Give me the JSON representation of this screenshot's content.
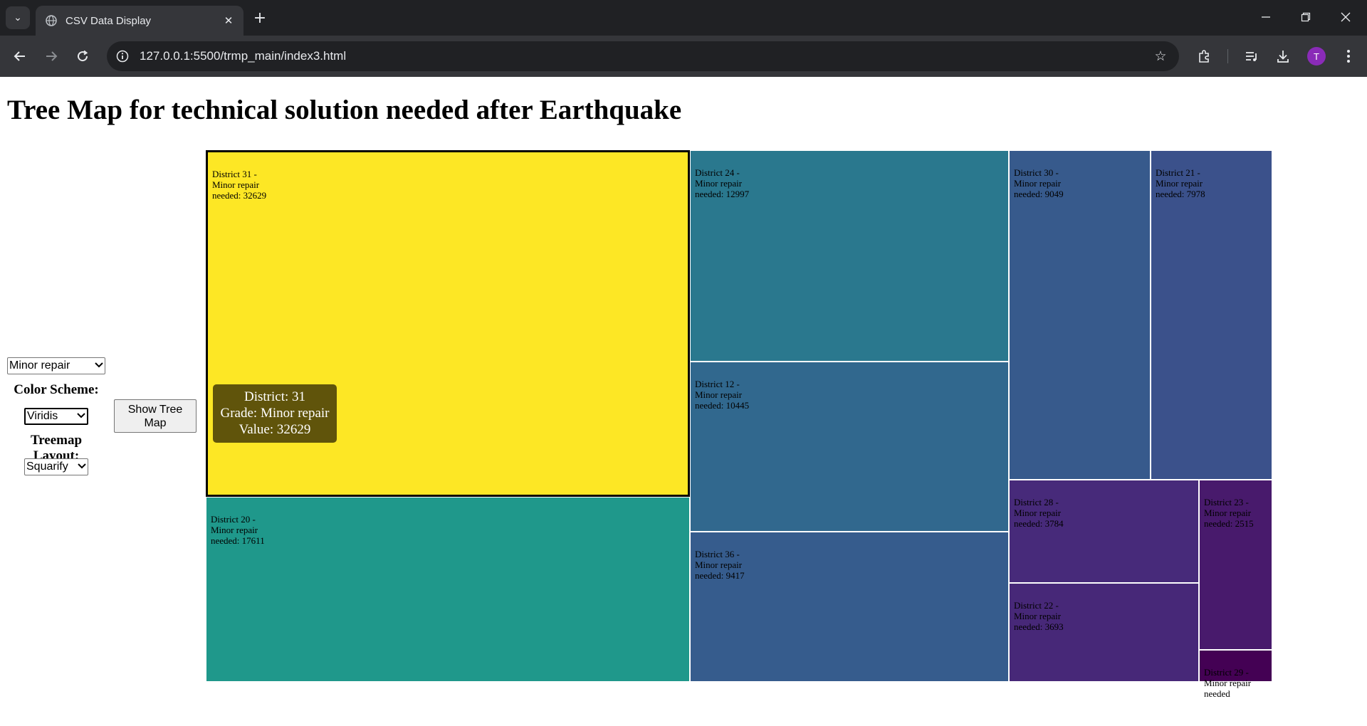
{
  "browser": {
    "tab_title": "CSV Data Display",
    "url": "127.0.0.1:5500/trmp_main/index3.html",
    "profile_initial": "T"
  },
  "page": {
    "title": "Tree Map for technical solution needed after Earthquake"
  },
  "controls": {
    "grade_value": "Minor repair",
    "color_scheme_label": "Color Scheme:",
    "color_scheme_value": "Viridis",
    "layout_label": "Treemap Layout:",
    "layout_value": "Squarify",
    "show_button_label": "Show Tree Map"
  },
  "chart_data": {
    "type": "treemap",
    "title": "",
    "grade": "Minor repair",
    "color_scheme": "Viridis",
    "layout": "squarify",
    "items": [
      {
        "district": "31",
        "value": 32629,
        "label": "District 31 - Minor repair needed: 32629",
        "color": "#fde725"
      },
      {
        "district": "20",
        "value": 17611,
        "label": "District 20 - Minor repair needed: 17611",
        "color": "#1f988b"
      },
      {
        "district": "24",
        "value": 12997,
        "label": "District 24 - Minor repair needed: 12997",
        "color": "#2a788e"
      },
      {
        "district": "12",
        "value": 10445,
        "label": "District 12 - Minor repair needed: 10445",
        "color": "#31688e"
      },
      {
        "district": "36",
        "value": 9417,
        "label": "District 36 - Minor repair needed: 9417",
        "color": "#365c8d"
      },
      {
        "district": "30",
        "value": 9049,
        "label": "District 30 - Minor repair needed: 9049",
        "color": "#375a8c"
      },
      {
        "district": "21",
        "value": 7978,
        "label": "District 21 - Minor repair needed: 7978",
        "color": "#3b518b"
      },
      {
        "district": "28",
        "value": 3784,
        "label": "District 28 - Minor repair needed: 3784",
        "color": "#472a7a"
      },
      {
        "district": "22",
        "value": 3693,
        "label": "District 22 - Minor repair needed: 3693",
        "color": "#472878"
      },
      {
        "district": "23",
        "value": 2515,
        "label": "District 23 - Minor repair needed: 2515",
        "color": "#481a6c"
      },
      {
        "district": "29",
        "value": null,
        "label": "District 29 - Minor repair needed",
        "color": "#440154"
      }
    ],
    "tooltip": {
      "district_line": "District: 31",
      "grade_line": "Grade: Minor repair",
      "value_line": "Value: 32629"
    }
  }
}
